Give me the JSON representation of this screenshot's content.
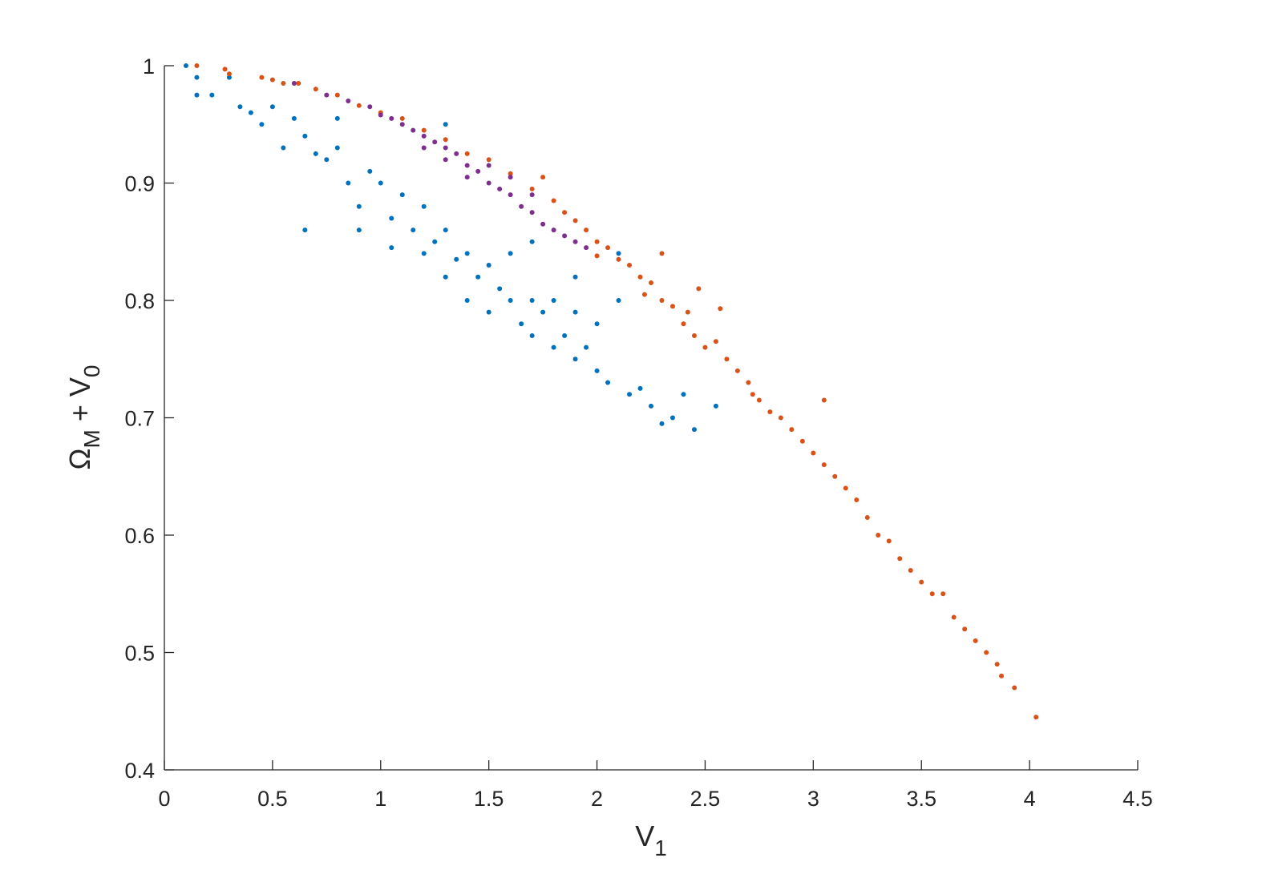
{
  "chart_data": {
    "type": "scatter",
    "xlabel": [
      {
        "text": "V"
      },
      {
        "text": "1",
        "sub": true
      }
    ],
    "ylabel": [
      {
        "text": "Ω"
      },
      {
        "text": "M",
        "sub": true
      },
      {
        "text": " + V"
      },
      {
        "text": "0",
        "sub": true
      }
    ],
    "xlim": [
      0,
      4.5
    ],
    "xticks": [
      0,
      0.5,
      1,
      1.5,
      2,
      2.5,
      3,
      3.5,
      4,
      4.5
    ],
    "ylim": [
      0.4,
      1
    ],
    "yticks": [
      0.4,
      0.5,
      0.6,
      0.7,
      0.8,
      0.9,
      1
    ],
    "grid": false,
    "series": [
      {
        "color": "#0072BD",
        "x": [
          0.1,
          0.15,
          0.15,
          0.22,
          0.3,
          0.35,
          0.4,
          0.45,
          0.5,
          0.55,
          0.6,
          0.65,
          0.7,
          0.75,
          0.8,
          0.85,
          0.9,
          0.9,
          0.95,
          1.0,
          1.05,
          1.05,
          1.1,
          1.15,
          1.2,
          1.2,
          1.25,
          1.3,
          1.3,
          1.35,
          1.4,
          1.4,
          1.45,
          1.5,
          1.5,
          1.55,
          1.6,
          1.6,
          1.65,
          1.7,
          1.7,
          1.75,
          1.8,
          1.8,
          1.85,
          1.9,
          1.9,
          1.95,
          2.0,
          2.0,
          2.05,
          2.1,
          2.15,
          2.2,
          2.25,
          2.3,
          2.35,
          2.4,
          2.45,
          2.55,
          1.7,
          1.9,
          2.1,
          0.65,
          1.3,
          0.8
        ],
        "y": [
          1.0,
          0.99,
          0.975,
          0.975,
          0.99,
          0.965,
          0.96,
          0.95,
          0.965,
          0.93,
          0.955,
          0.94,
          0.925,
          0.92,
          0.93,
          0.9,
          0.88,
          0.86,
          0.91,
          0.9,
          0.87,
          0.845,
          0.89,
          0.86,
          0.88,
          0.84,
          0.85,
          0.86,
          0.82,
          0.835,
          0.84,
          0.8,
          0.82,
          0.83,
          0.79,
          0.81,
          0.84,
          0.8,
          0.78,
          0.8,
          0.77,
          0.79,
          0.76,
          0.8,
          0.77,
          0.75,
          0.79,
          0.76,
          0.74,
          0.78,
          0.73,
          0.8,
          0.72,
          0.725,
          0.71,
          0.695,
          0.7,
          0.72,
          0.69,
          0.71,
          0.85,
          0.82,
          0.84,
          0.86,
          0.95,
          0.955
        ]
      },
      {
        "color": "#D95319",
        "x": [
          0.15,
          0.28,
          0.3,
          0.45,
          0.5,
          0.55,
          0.62,
          0.7,
          0.8,
          0.9,
          1.0,
          1.1,
          1.2,
          1.3,
          1.4,
          1.5,
          1.6,
          1.7,
          1.8,
          1.85,
          1.9,
          1.95,
          2.0,
          2.0,
          2.05,
          2.1,
          2.15,
          2.2,
          2.22,
          2.25,
          2.3,
          2.35,
          2.4,
          2.42,
          2.45,
          2.5,
          2.55,
          2.6,
          2.65,
          2.7,
          2.72,
          2.75,
          2.8,
          2.85,
          2.9,
          2.95,
          3.0,
          3.05,
          3.05,
          3.1,
          3.15,
          3.2,
          3.25,
          3.3,
          3.35,
          3.4,
          3.45,
          3.5,
          3.55,
          3.6,
          3.65,
          3.7,
          3.75,
          3.8,
          3.85,
          3.87,
          3.93,
          4.03,
          2.57,
          2.47,
          2.3,
          1.75
        ],
        "y": [
          1.0,
          0.997,
          0.993,
          0.99,
          0.988,
          0.985,
          0.985,
          0.98,
          0.975,
          0.966,
          0.96,
          0.955,
          0.945,
          0.937,
          0.925,
          0.92,
          0.908,
          0.895,
          0.885,
          0.875,
          0.868,
          0.86,
          0.85,
          0.838,
          0.845,
          0.835,
          0.83,
          0.82,
          0.805,
          0.815,
          0.8,
          0.795,
          0.78,
          0.79,
          0.77,
          0.76,
          0.765,
          0.75,
          0.74,
          0.73,
          0.72,
          0.715,
          0.705,
          0.7,
          0.69,
          0.68,
          0.67,
          0.66,
          0.715,
          0.65,
          0.64,
          0.63,
          0.615,
          0.6,
          0.595,
          0.58,
          0.57,
          0.56,
          0.55,
          0.55,
          0.53,
          0.52,
          0.51,
          0.5,
          0.49,
          0.48,
          0.47,
          0.445,
          0.793,
          0.81,
          0.84,
          0.905
        ]
      },
      {
        "color": "#7E2F8E",
        "x": [
          0.6,
          0.75,
          0.85,
          0.95,
          1.0,
          1.05,
          1.1,
          1.15,
          1.2,
          1.2,
          1.25,
          1.3,
          1.3,
          1.35,
          1.4,
          1.4,
          1.45,
          1.5,
          1.5,
          1.55,
          1.6,
          1.6,
          1.65,
          1.7,
          1.7,
          1.75,
          1.8,
          1.85,
          1.9,
          1.95
        ],
        "y": [
          0.985,
          0.975,
          0.97,
          0.965,
          0.958,
          0.955,
          0.95,
          0.945,
          0.94,
          0.93,
          0.935,
          0.93,
          0.92,
          0.925,
          0.915,
          0.905,
          0.91,
          0.9,
          0.915,
          0.895,
          0.89,
          0.905,
          0.88,
          0.875,
          0.89,
          0.865,
          0.86,
          0.855,
          0.85,
          0.845
        ]
      }
    ]
  }
}
